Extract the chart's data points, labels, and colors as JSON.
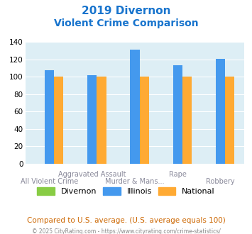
{
  "title_line1": "2019 Divernon",
  "title_line2": "Violent Crime Comparison",
  "title_color": "#1874CD",
  "illinois_values": [
    108,
    102,
    131,
    113,
    121
  ],
  "national_values": [
    100,
    100,
    100,
    100,
    100
  ],
  "divernon_values": [
    0,
    0,
    0,
    0,
    0
  ],
  "divernon_color": "#88cc44",
  "illinois_color": "#4499ee",
  "national_color": "#ffaa33",
  "ylim": [
    0,
    140
  ],
  "yticks": [
    0,
    20,
    40,
    60,
    80,
    100,
    120,
    140
  ],
  "plot_bg": "#ddeef5",
  "top_xlabels": [
    "",
    "Aggravated Assault",
    "",
    "Rape",
    ""
  ],
  "bot_xlabels": [
    "All Violent Crime",
    "",
    "Murder & Mans...",
    "",
    "Robbery"
  ],
  "footer_text": "Compared to U.S. average. (U.S. average equals 100)",
  "footer_color": "#cc6600",
  "copyright_text": "© 2025 CityRating.com - https://www.cityrating.com/crime-statistics/",
  "copyright_color": "#888888",
  "legend_labels": [
    "Divernon",
    "Illinois",
    "National"
  ]
}
